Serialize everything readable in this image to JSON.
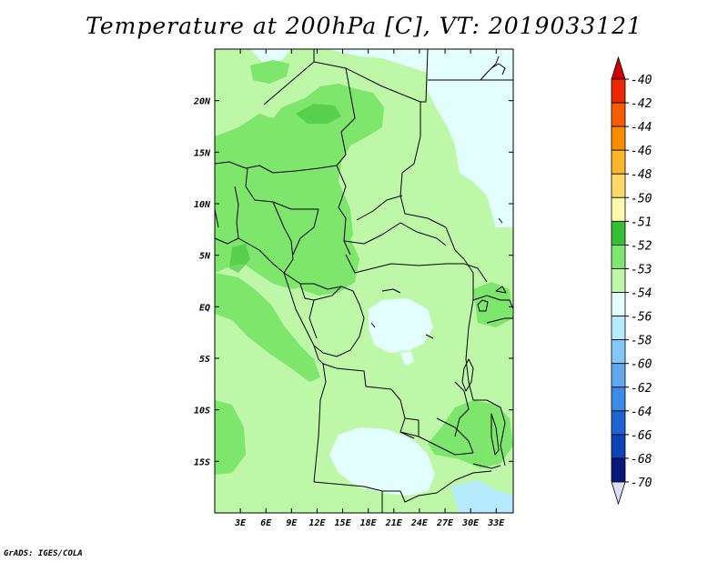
{
  "title": "Temperature at 200hPa [C], VT: 2019033121",
  "credit": "GrADS: IGES/COLA",
  "map": {
    "lon_range": [
      0,
      35
    ],
    "lat_range": [
      -20,
      25
    ],
    "lon_ticks": [
      {
        "value": 3,
        "label": "3E"
      },
      {
        "value": 6,
        "label": "6E"
      },
      {
        "value": 9,
        "label": "9E"
      },
      {
        "value": 12,
        "label": "12E"
      },
      {
        "value": 15,
        "label": "15E"
      },
      {
        "value": 18,
        "label": "18E"
      },
      {
        "value": 21,
        "label": "21E"
      },
      {
        "value": 24,
        "label": "24E"
      },
      {
        "value": 27,
        "label": "27E"
      },
      {
        "value": 30,
        "label": "30E"
      },
      {
        "value": 33,
        "label": "33E"
      }
    ],
    "lat_ticks": [
      {
        "value": 20,
        "label": "20N"
      },
      {
        "value": 15,
        "label": "15N"
      },
      {
        "value": 10,
        "label": "10N"
      },
      {
        "value": 5,
        "label": "5N"
      },
      {
        "value": 0,
        "label": "EQ"
      },
      {
        "value": -5,
        "label": "5S"
      },
      {
        "value": -10,
        "label": "10S"
      },
      {
        "value": -15,
        "label": "15S"
      }
    ]
  },
  "colorbar": {
    "labels": [
      "-40",
      "-42",
      "-44",
      "-46",
      "-48",
      "-50",
      "-51",
      "-52",
      "-53",
      "-54",
      "-56",
      "-58",
      "-60",
      "-62",
      "-64",
      "-66",
      "-68",
      "-70"
    ],
    "colors": [
      "#d10000",
      "#ec2800",
      "#f65c00",
      "#fa8c00",
      "#fdb62c",
      "#ffd86a",
      "#fffaaa",
      "#35c033",
      "#7ee56d",
      "#bef7a8",
      "#e2fffe",
      "#b6eafe",
      "#83c8f8",
      "#61aaf2",
      "#3b8ce8",
      "#1e64d1",
      "#0c44b5",
      "#07187a",
      "#ddddf5"
    ]
  },
  "field_colors": {
    "c53": "#7ee56d",
    "c54": "#bef7a8",
    "c56": "#e2fffe",
    "c58": "#b6eafe"
  }
}
